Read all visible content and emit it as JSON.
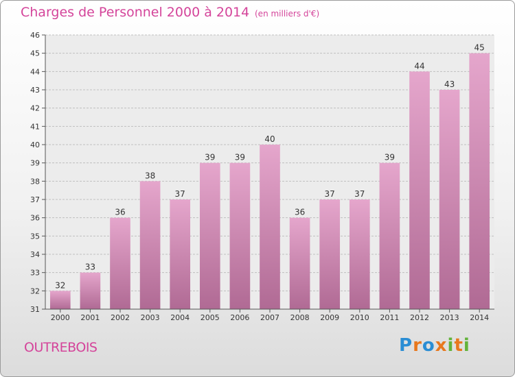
{
  "header": {
    "title": "Charges de Personnel 2000 à 2014",
    "subtitle": "(en milliers d'€)"
  },
  "footer": {
    "commune": "OUTREBOIS",
    "logo_letters": [
      {
        "char": "P",
        "color": "#2a8dd4"
      },
      {
        "char": "r",
        "color": "#e8781e"
      },
      {
        "char": "o",
        "color": "#2a8dd4"
      },
      {
        "char": "x",
        "color": "#e8781e"
      },
      {
        "char": "i",
        "color": "#63b33a"
      },
      {
        "char": "t",
        "color": "#e8781e"
      },
      {
        "char": "i",
        "color": "#63b33a"
      }
    ]
  },
  "chart_data": {
    "type": "bar",
    "categories": [
      "2000",
      "2001",
      "2002",
      "2003",
      "2004",
      "2005",
      "2006",
      "2007",
      "2008",
      "2009",
      "2010",
      "2011",
      "2012",
      "2013",
      "2014"
    ],
    "values": [
      32,
      33,
      36,
      38,
      37,
      39,
      39,
      40,
      36,
      37,
      37,
      39,
      44,
      43,
      45
    ],
    "ylim": [
      31,
      46
    ],
    "yticks": [
      31,
      32,
      33,
      34,
      35,
      36,
      37,
      38,
      39,
      40,
      41,
      42,
      43,
      44,
      45,
      46
    ],
    "grid": true,
    "bar_color_top": "#e5a6cc",
    "bar_color_bottom": "#b06a94",
    "data_labels": true
  }
}
